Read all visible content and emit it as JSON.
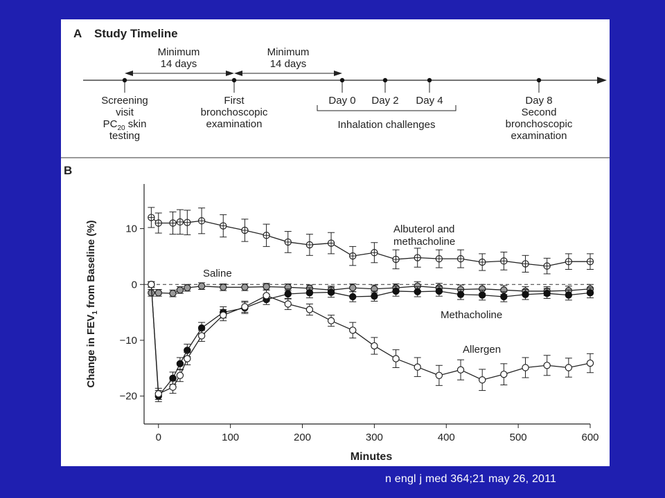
{
  "panelA": {
    "letter": "A",
    "title": "Study Timeline",
    "intervals": [
      {
        "lines": [
          "Minimum",
          "14 days"
        ]
      },
      {
        "lines": [
          "Minimum",
          "14 days"
        ]
      }
    ],
    "events": [
      {
        "lines": [
          "Screening",
          "visit",
          "PC20 skin",
          "testing"
        ]
      },
      {
        "lines": [
          "First",
          "bronchoscopic",
          "examination"
        ]
      },
      {
        "lines": [
          "Day 0"
        ]
      },
      {
        "lines": [
          "Day 2"
        ]
      },
      {
        "lines": [
          "Day 4"
        ]
      },
      {
        "lines": [
          "Day 8",
          "Second",
          "bronchoscopic",
          "examination"
        ]
      }
    ],
    "bracket_label": "Inhalation challenges"
  },
  "panelB": {
    "letter": "B"
  },
  "chart_data": {
    "type": "line",
    "xlabel": "Minutes",
    "ylabel": "Change in FEV1 from Baseline (%)",
    "xlim": [
      -20,
      600
    ],
    "ylim": [
      -25,
      18
    ],
    "xticks": [
      0,
      100,
      200,
      300,
      400,
      500,
      600
    ],
    "yticks": [
      -20,
      -10,
      0,
      10
    ],
    "reference_line": 0,
    "grid": false,
    "series": [
      {
        "name": "Albuterol and methacholine",
        "marker": "crossed-circle",
        "x": [
          -10,
          0,
          20,
          30,
          40,
          60,
          90,
          120,
          150,
          180,
          210,
          240,
          270,
          300,
          330,
          360,
          390,
          420,
          450,
          480,
          510,
          540,
          570,
          600
        ],
        "y": [
          12,
          11,
          11,
          11.2,
          11.1,
          11.4,
          10.5,
          9.7,
          8.8,
          7.6,
          7.1,
          7.4,
          5.1,
          5.7,
          4.5,
          4.8,
          4.6,
          4.6,
          4.0,
          4.2,
          3.7,
          3.3,
          4.1,
          4.1
        ],
        "err": [
          1.8,
          1.8,
          2.0,
          2.2,
          2.2,
          2.3,
          2.0,
          2.0,
          2.0,
          1.9,
          1.9,
          1.9,
          1.7,
          1.8,
          1.7,
          1.7,
          1.6,
          1.6,
          1.5,
          1.6,
          1.5,
          1.4,
          1.4,
          1.4
        ]
      },
      {
        "name": "Saline",
        "marker": "gray-circle",
        "x": [
          -10,
          0,
          20,
          30,
          40,
          60,
          90,
          120,
          150,
          180,
          210,
          240,
          270,
          300,
          330,
          360,
          390,
          420,
          450,
          480,
          510,
          540,
          570,
          600
        ],
        "y": [
          -1.5,
          -1.5,
          -1.6,
          -1.0,
          -0.6,
          -0.3,
          -0.5,
          -0.5,
          -0.4,
          -0.5,
          -0.7,
          -1.0,
          -0.6,
          -0.8,
          -0.6,
          -0.3,
          -0.6,
          -0.9,
          -0.8,
          -1.0,
          -1.2,
          -1.2,
          -1.1,
          -0.8
        ],
        "err": [
          0.6,
          0.6,
          0.6,
          0.6,
          0.6,
          0.6,
          0.6,
          0.6,
          0.6,
          0.6,
          0.6,
          0.7,
          0.7,
          0.7,
          0.7,
          0.8,
          0.8,
          0.8,
          0.8,
          0.8,
          0.8,
          0.8,
          0.8,
          0.8
        ]
      },
      {
        "name": "Methacholine",
        "marker": "filled-circle",
        "x": [
          -10,
          0,
          20,
          30,
          40,
          60,
          90,
          120,
          150,
          180,
          210,
          240,
          270,
          300,
          330,
          360,
          390,
          420,
          450,
          480,
          510,
          540,
          570,
          600
        ],
        "y": [
          0,
          -20,
          -16.8,
          -14.2,
          -11.8,
          -7.8,
          -5.0,
          -4.2,
          -2.7,
          -1.7,
          -1.5,
          -1.4,
          -2.2,
          -2.1,
          -1.2,
          -1.3,
          -1.2,
          -1.8,
          -1.9,
          -2.2,
          -1.8,
          -1.6,
          -1.9,
          -1.5
        ],
        "err": [
          0.5,
          1.0,
          1.1,
          1.1,
          1.1,
          1.0,
          1.0,
          1.0,
          0.9,
          0.9,
          0.9,
          0.9,
          0.9,
          0.9,
          0.9,
          0.9,
          0.9,
          0.9,
          0.9,
          0.9,
          0.9,
          0.9,
          0.9,
          0.9
        ]
      },
      {
        "name": "Allergen",
        "marker": "open-circle",
        "x": [
          -10,
          0,
          20,
          30,
          40,
          60,
          90,
          120,
          150,
          180,
          210,
          240,
          270,
          300,
          330,
          360,
          390,
          420,
          450,
          480,
          510,
          540,
          570,
          600
        ],
        "y": [
          0,
          -19.6,
          -18.4,
          -16.3,
          -13.3,
          -9.2,
          -5.5,
          -4.0,
          -2.0,
          -3.5,
          -4.5,
          -6.5,
          -8.2,
          -11.0,
          -13.3,
          -14.8,
          -16.3,
          -15.3,
          -17.1,
          -16.1,
          -14.9,
          -14.5,
          -14.9,
          -14.1
        ],
        "err": [
          0.5,
          1.0,
          1.1,
          1.1,
          1.1,
          1.0,
          1.0,
          1.0,
          1.0,
          1.0,
          1.0,
          1.0,
          1.4,
          1.5,
          1.6,
          1.7,
          1.8,
          1.8,
          1.9,
          1.9,
          1.8,
          1.8,
          1.7,
          1.7
        ]
      }
    ]
  },
  "citation": "n engl j med 364;21 may 26, 2011"
}
